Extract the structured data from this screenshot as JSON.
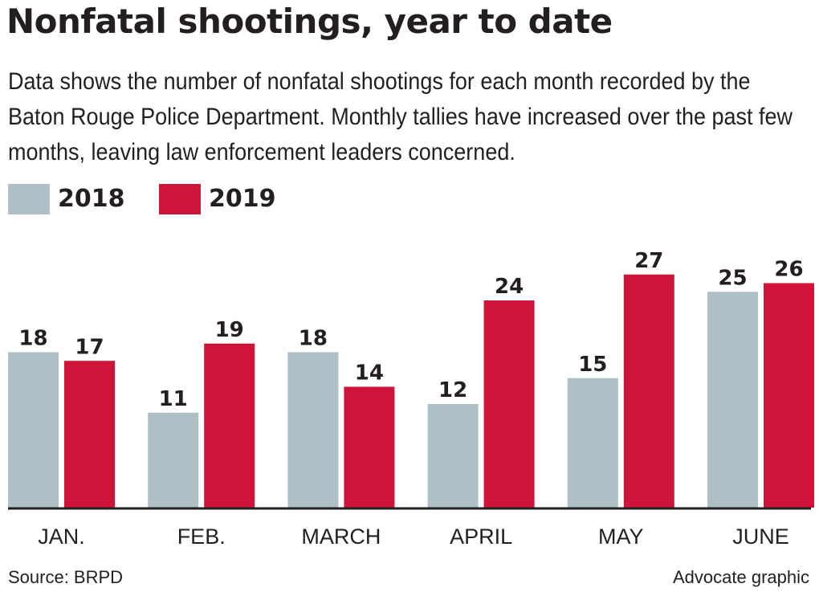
{
  "header": {
    "title": "Nonfatal shootings, year to date",
    "subtitle": "Data shows the number of nonfatal shootings for each month recorded by the Baton Rouge Police Department. Monthly tallies have increased over the past few months, leaving law enforcement leaders concerned."
  },
  "footer": {
    "source": "Source: BRPD",
    "credit": "Advocate graphic"
  },
  "colors": {
    "s2018": "#aebfc6",
    "s2019": "#cf1439",
    "text": "#231f20",
    "baseline": "#231f20"
  },
  "chart_data": {
    "type": "bar",
    "title": "Nonfatal shootings, year to date",
    "categories": [
      "JAN.",
      "FEB.",
      "MARCH",
      "APRIL",
      "MAY",
      "JUNE"
    ],
    "series": [
      {
        "name": "2018",
        "values": [
          18,
          11,
          18,
          12,
          15,
          25
        ]
      },
      {
        "name": "2019",
        "values": [
          17,
          19,
          14,
          24,
          27,
          26
        ]
      }
    ],
    "xlabel": "",
    "ylabel": "",
    "ylim": [
      0,
      27
    ],
    "grid": false,
    "legend": "top-left",
    "data_labels": true
  }
}
